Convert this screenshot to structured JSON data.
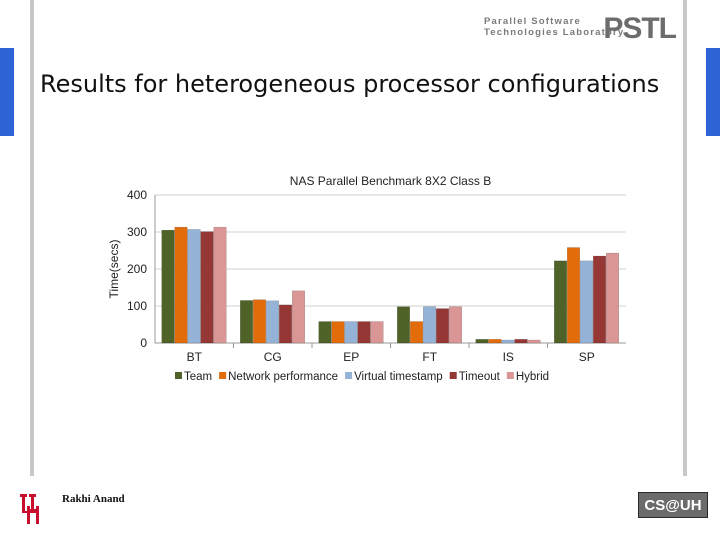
{
  "slide": {
    "title": "Results for heterogeneous processor configurations",
    "author": "Rakhi Anand",
    "logo_line1": "Parallel Software",
    "logo_line2": "Technologies Laboratory",
    "logo_mark": "PSTL",
    "footer_logo": "CS@UH",
    "accent": "#2f64d6"
  },
  "chart_data": {
    "type": "bar",
    "title": "NAS Parallel Benchmark 8X2 Class B",
    "xlabel": "",
    "ylabel": "Time(secs)",
    "ylim": [
      0,
      400
    ],
    "yticks": [
      0,
      100,
      200,
      300,
      400
    ],
    "grid": true,
    "legend": "bottom",
    "categories": [
      "BT",
      "CG",
      "EP",
      "FT",
      "IS",
      "SP"
    ],
    "series": [
      {
        "name": "Team",
        "color": "#4f6228",
        "values": [
          305,
          115,
          58,
          98,
          10,
          222
        ]
      },
      {
        "name": "Network performance",
        "color": "#e36c0a",
        "values": [
          313,
          117,
          58,
          58,
          10,
          258
        ]
      },
      {
        "name": "Virtual timestamp",
        "color": "#95b3d7",
        "values": [
          307,
          114,
          58,
          98,
          8,
          222
        ]
      },
      {
        "name": "Timeout",
        "color": "#953735",
        "values": [
          301,
          103,
          58,
          93,
          10,
          235
        ]
      },
      {
        "name": "Hybrid",
        "color": "#d99694",
        "values": [
          313,
          141,
          58,
          98,
          8,
          243
        ]
      }
    ]
  }
}
